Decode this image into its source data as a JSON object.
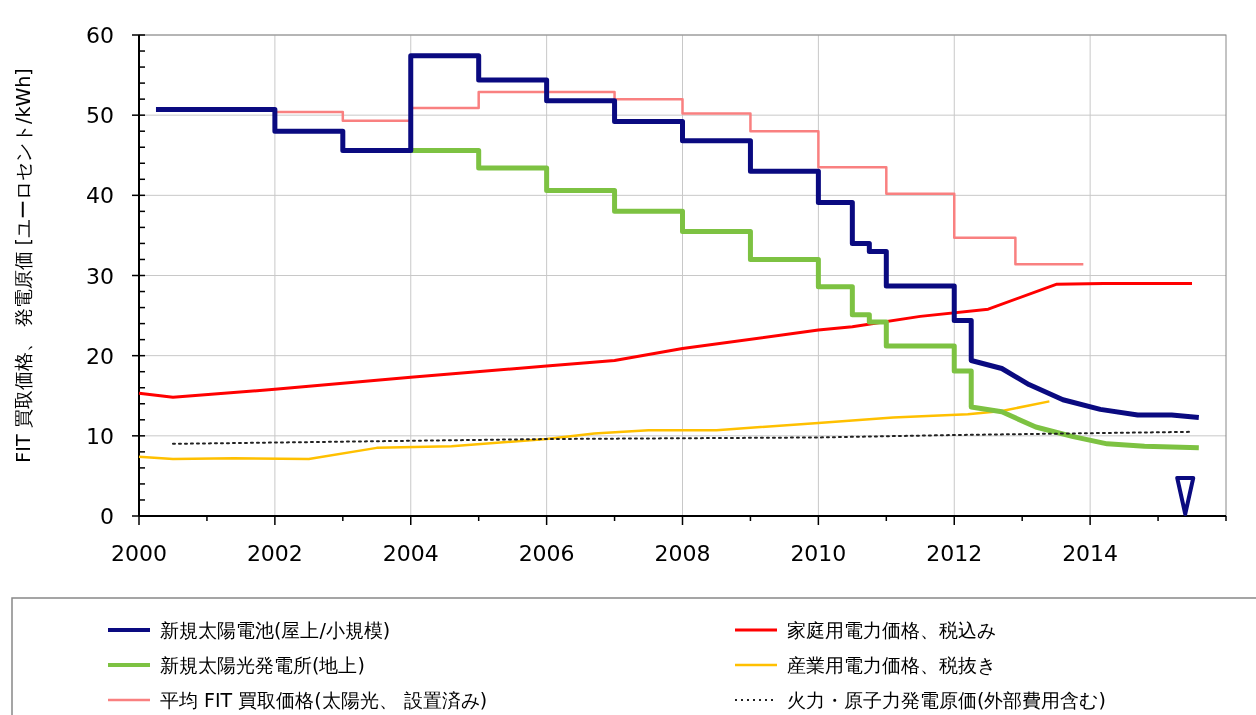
{
  "chart_data": {
    "type": "line",
    "ylabel": "FIT 買取価格、 発電原価 [ユーロセント/kWh]",
    "xlim": [
      2000,
      2016
    ],
    "xticks": [
      2000,
      {
        "value": 2001,
        "label": null
      },
      2002,
      {
        "value": 2003,
        "label": null
      },
      2004,
      {
        "value": 2005,
        "label": null
      },
      2006,
      {
        "value": 2007,
        "label": null
      },
      2008,
      {
        "value": 2009,
        "label": null
      },
      2010,
      {
        "value": 2011,
        "label": null
      },
      2012,
      {
        "value": 2013,
        "label": null
      },
      2014,
      {
        "value": 2015,
        "label": null
      },
      {
        "value": 2016,
        "label": null
      }
    ],
    "ylim": [
      0,
      60
    ],
    "yticks": [
      0,
      {
        "value": 2,
        "label": null
      },
      {
        "value": 4,
        "label": null
      },
      {
        "value": 6,
        "label": null
      },
      {
        "value": 8,
        "label": null
      },
      10,
      {
        "value": 12,
        "label": null
      },
      {
        "value": 14,
        "label": null
      },
      {
        "value": 16,
        "label": null
      },
      {
        "value": 18,
        "label": null
      },
      20,
      {
        "value": 22,
        "label": null
      },
      {
        "value": 24,
        "label": null
      },
      {
        "value": 26,
        "label": null
      },
      {
        "value": 28,
        "label": null
      },
      30,
      {
        "value": 32,
        "label": null
      },
      {
        "value": 34,
        "label": null
      },
      {
        "value": 36,
        "label": null
      },
      {
        "value": 38,
        "label": null
      },
      40,
      {
        "value": 42,
        "label": null
      },
      {
        "value": 44,
        "label": null
      },
      {
        "value": 46,
        "label": null
      },
      {
        "value": 48,
        "label": null
      },
      50,
      {
        "value": 52,
        "label": null
      },
      {
        "value": 54,
        "label": null
      },
      {
        "value": 56,
        "label": null
      },
      {
        "value": 58,
        "label": null
      },
      60
    ],
    "grid": true,
    "legend": "bottom",
    "marker": "none",
    "series": [
      {
        "name": "新規太陽電池(屋上/小規模)",
        "color": "#0a0a80",
        "x": [
          2000.25,
          2002,
          2002,
          2003,
          2003,
          2004,
          2004,
          2005,
          2005,
          2006,
          2006,
          2007,
          2007,
          2008,
          2008,
          2009,
          2009,
          2010,
          2010,
          2010.5,
          2010.5,
          2010.75,
          2010.75,
          2011,
          2011,
          2012,
          2012,
          2012.25,
          2012.25,
          2012.7,
          2013.1,
          2013.6,
          2014.15,
          2014.7,
          2015.2,
          2015.6
        ],
        "values": [
          50.7,
          50.7,
          48,
          48,
          45.6,
          45.6,
          57.4,
          57.4,
          54.4,
          54.4,
          51.8,
          51.8,
          49.2,
          49.2,
          46.8,
          46.8,
          43,
          43,
          39.1,
          39.1,
          34,
          34,
          33,
          33,
          28.7,
          28.7,
          24.4,
          24.4,
          19.4,
          18.4,
          16.4,
          14.5,
          13.3,
          12.6,
          12.6,
          12.3
        ]
      },
      {
        "name": "新規太陽光発電所(地上)",
        "color": "#7dc242",
        "x": [
          2004,
          2005,
          2005,
          2006,
          2006,
          2007,
          2007,
          2008,
          2008,
          2009,
          2009,
          2010,
          2010,
          2010.5,
          2010.5,
          2010.75,
          2010.75,
          2011,
          2011,
          2012,
          2012,
          2012.25,
          2012.25,
          2012.7,
          2013.2,
          2013.75,
          2014.25,
          2014.8,
          2015.6
        ],
        "values": [
          45.6,
          45.6,
          43.4,
          43.4,
          40.6,
          40.6,
          38,
          38,
          35.5,
          35.5,
          32,
          32,
          28.6,
          28.6,
          25.1,
          25.1,
          24.2,
          24.2,
          21.2,
          21.2,
          18.1,
          18.1,
          13.6,
          13,
          11.1,
          9.9,
          9,
          8.7,
          8.5
        ]
      },
      {
        "name": "平均 FIT 買取価格(太陽光、 設置済み)",
        "color": "#f98080",
        "x": [
          2002,
          2003,
          2003,
          2004,
          2004,
          2005,
          2005,
          2007,
          2007,
          2008,
          2008,
          2009,
          2009,
          2010,
          2010,
          2011,
          2011,
          2012,
          2012,
          2012.9,
          2012.9,
          2013.9
        ],
        "values": [
          50.4,
          50.4,
          49.3,
          49.3,
          50.9,
          50.9,
          52.9,
          52.9,
          52,
          52,
          50.2,
          50.2,
          48,
          48,
          43.5,
          43.5,
          40.2,
          40.2,
          34.7,
          34.7,
          31.4,
          31.4
        ]
      },
      {
        "name": "家庭用電力価格、税込み",
        "color": "#ff0000",
        "x": [
          2000,
          2000.5,
          2002,
          2004,
          2006,
          2007,
          2008,
          2010,
          2010.5,
          2011.5,
          2012.5,
          2013.5,
          2014.2,
          2015.5
        ],
        "values": [
          15.3,
          14.8,
          15.8,
          17.3,
          18.7,
          19.4,
          20.9,
          23.2,
          23.6,
          24.9,
          25.8,
          28.9,
          29,
          29
        ]
      },
      {
        "name": "産業用電力価格、税抜き",
        "color": "#ffc000",
        "x": [
          2000,
          2000.5,
          2001.4,
          2002.5,
          2003.5,
          2004.6,
          2006,
          2006.7,
          2007.5,
          2008.5,
          2010,
          2011.1,
          2012.2,
          2012.7,
          2013.4
        ],
        "values": [
          7.4,
          7.1,
          7.2,
          7.1,
          8.5,
          8.7,
          9.6,
          10.3,
          10.7,
          10.7,
          11.6,
          12.3,
          12.7,
          13.1,
          14.3
        ]
      },
      {
        "name": "火力・原子力発電原価(外部費用含む)",
        "color": "#222222",
        "line_style": "dotted",
        "x": [
          2000.5,
          2006,
          2010,
          2012,
          2015.5
        ],
        "values": [
          9,
          9.6,
          9.8,
          10.1,
          10.5
        ]
      }
    ]
  }
}
